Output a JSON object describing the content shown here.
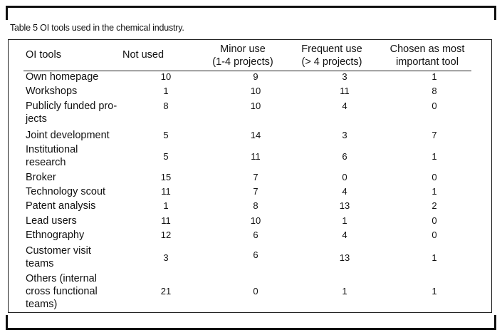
{
  "caption": "Table 5 OI tools used in the chemical industry.",
  "headers": {
    "tools": "OI tools",
    "not_used": "Not used",
    "minor_line1": "Minor use",
    "minor_line2": "(1-4 projects)",
    "frequent_line1": "Frequent use",
    "frequent_line2": "(> 4 projects)",
    "chosen_line1": "Chosen as most",
    "chosen_line2": "important tool"
  },
  "rows": [
    {
      "label1": "Own homepage",
      "label2": "",
      "label3": "",
      "not_used": "10",
      "minor": "9",
      "frequent": "3",
      "chosen": "1"
    },
    {
      "label1": "Workshops",
      "label2": "",
      "label3": "",
      "not_used": "1",
      "minor": "10",
      "frequent": "11",
      "chosen": "8"
    },
    {
      "label1": "Publicly funded pro-",
      "label2": "jects",
      "label3": "",
      "not_used": "8",
      "minor": "10",
      "frequent": "4",
      "chosen": "0"
    },
    {
      "label1": "Joint development",
      "label2": "",
      "label3": "",
      "not_used": "5",
      "minor": "14",
      "frequent": "3",
      "chosen": "7"
    },
    {
      "label1": "Institutional",
      "label2": "research",
      "label3": "",
      "not_used": "5",
      "minor": "11",
      "frequent": "6",
      "chosen": "1"
    },
    {
      "label1": "Broker",
      "label2": "",
      "label3": "",
      "not_used": "15",
      "minor": "7",
      "frequent": "0",
      "chosen": "0"
    },
    {
      "label1": "Technology scout",
      "label2": "",
      "label3": "",
      "not_used": "11",
      "minor": "7",
      "frequent": "4",
      "chosen": "1"
    },
    {
      "label1": "Patent analysis",
      "label2": "",
      "label3": "",
      "not_used": "1",
      "minor": "8",
      "frequent": "13",
      "chosen": "2"
    },
    {
      "label1": "Lead users",
      "label2": "",
      "label3": "",
      "not_used": "11",
      "minor": "10",
      "frequent": "1",
      "chosen": "0"
    },
    {
      "label1": "Ethnography",
      "label2": "",
      "label3": "",
      "not_used": "12",
      "minor": "6",
      "frequent": "4",
      "chosen": "0"
    },
    {
      "label1": "Customer visit",
      "label2": "teams",
      "label3": "",
      "not_used": "3",
      "minor": "6",
      "frequent": "13",
      "chosen": "1"
    },
    {
      "label1": "Others (internal",
      "label2": "cross functional",
      "label3": "teams)",
      "not_used": "21",
      "minor": "0",
      "frequent": "1",
      "chosen": "1"
    }
  ]
}
